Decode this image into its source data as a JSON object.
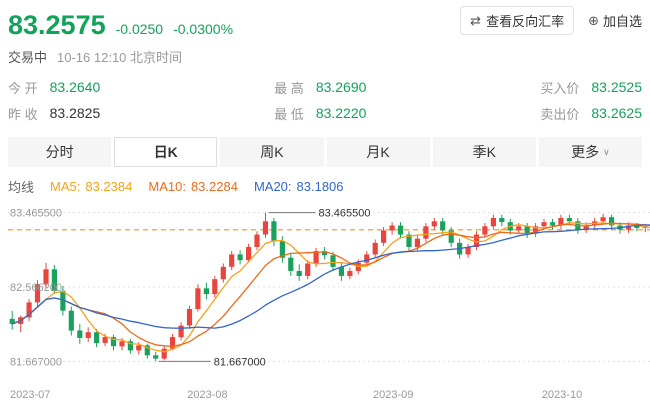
{
  "colors": {
    "green": "#12a35a",
    "dark_text": "#333333",
    "gray_label": "#999999",
    "candle_up": "#e8453f",
    "candle_down": "#19a25c",
    "dashed_line": "#ff8c1a",
    "grid_line": "#e0e0e0",
    "ma5": "#f7a21b",
    "ma10": "#ed6a1c",
    "ma20": "#3366cc"
  },
  "icons": {
    "swap": "⇄",
    "add_circle": "⊕",
    "chevron_down": "∨"
  },
  "header": {
    "price": "83.2575",
    "change": "-0.0250",
    "change_pct": "-0.0300%",
    "reverse_rate_label": "查看反向汇率",
    "add_watchlist_label": "加自选",
    "status": "交易中",
    "timestamp": "10-16 12:10 北京时间"
  },
  "quote": {
    "open_label": "今 开",
    "open": "83.2640",
    "prev_close_label": "昨 收",
    "prev_close": "83.2825",
    "high_label": "最 高",
    "high": "83.2690",
    "low_label": "最 低",
    "low": "83.2220",
    "bid_label": "买入价",
    "bid": "83.2525",
    "ask_label": "卖出价",
    "ask": "83.2625"
  },
  "tabs": [
    {
      "label": "分时",
      "active": false
    },
    {
      "label": "日K",
      "active": true
    },
    {
      "label": "周K",
      "active": false
    },
    {
      "label": "月K",
      "active": false
    },
    {
      "label": "季K",
      "active": false
    },
    {
      "label": "更多",
      "active": false,
      "has_chevron": true
    }
  ],
  "ma": {
    "title": "均线",
    "ma5_label": "MA5:",
    "ma5_value": "83.2384",
    "ma10_label": "MA10:",
    "ma10_value": "83.2284",
    "ma20_label": "MA20:",
    "ma20_value": "83.1806"
  },
  "chart_data": {
    "type": "candlestick",
    "period": "日K",
    "current_price": 83.2575,
    "y_axis": {
      "ticks": [
        {
          "label": "83.465500",
          "value": 83.4655
        },
        {
          "label": "82.566200",
          "value": 82.5662
        },
        {
          "label": "81.667000",
          "value": 81.667
        }
      ]
    },
    "x_axis": {
      "ticks": [
        {
          "label": "2023-07",
          "index": 0
        },
        {
          "label": "2023-08",
          "index": 21
        },
        {
          "label": "2023-09",
          "index": 43
        },
        {
          "label": "2023-10",
          "index": 63
        }
      ]
    },
    "high_annotation": {
      "label": "83.465500",
      "value": 83.4655
    },
    "low_annotation": {
      "label": "81.667000",
      "value": 81.667
    },
    "ma_periods": [
      5,
      10,
      20
    ],
    "candles": [
      [
        82.18,
        82.28,
        82.05,
        82.12
      ],
      [
        82.12,
        82.22,
        82.02,
        82.2
      ],
      [
        82.2,
        82.42,
        82.15,
        82.38
      ],
      [
        82.38,
        82.65,
        82.33,
        82.6
      ],
      [
        82.6,
        82.86,
        82.55,
        82.78
      ],
      [
        82.78,
        82.83,
        82.48,
        82.52
      ],
      [
        82.52,
        82.58,
        82.22,
        82.28
      ],
      [
        82.28,
        82.33,
        81.98,
        82.04
      ],
      [
        82.04,
        82.12,
        81.88,
        81.95
      ],
      [
        81.95,
        82.08,
        81.9,
        82.02
      ],
      [
        82.02,
        82.06,
        81.84,
        81.89
      ],
      [
        81.89,
        82.0,
        81.85,
        81.96
      ],
      [
        81.96,
        81.99,
        81.8,
        81.85
      ],
      [
        81.85,
        81.95,
        81.8,
        81.91
      ],
      [
        81.91,
        81.94,
        81.76,
        81.8
      ],
      [
        81.8,
        81.9,
        81.75,
        81.86
      ],
      [
        81.86,
        81.88,
        81.7,
        81.74
      ],
      [
        81.74,
        81.78,
        81.667,
        81.7
      ],
      [
        81.7,
        81.85,
        81.68,
        81.82
      ],
      [
        81.82,
        82.0,
        81.8,
        81.96
      ],
      [
        81.96,
        82.14,
        81.92,
        82.1
      ],
      [
        82.1,
        82.34,
        82.06,
        82.3
      ],
      [
        82.3,
        82.6,
        82.27,
        82.55
      ],
      [
        82.55,
        82.62,
        82.42,
        82.48
      ],
      [
        82.48,
        82.7,
        82.44,
        82.66
      ],
      [
        82.66,
        82.85,
        82.62,
        82.81
      ],
      [
        82.81,
        83.0,
        82.77,
        82.96
      ],
      [
        82.96,
        83.01,
        82.84,
        82.89
      ],
      [
        82.89,
        83.09,
        82.86,
        83.05
      ],
      [
        83.05,
        83.24,
        83.01,
        83.2
      ],
      [
        83.2,
        83.4655,
        83.16,
        83.36
      ],
      [
        83.36,
        83.4,
        83.06,
        83.12
      ],
      [
        83.12,
        83.18,
        82.86,
        82.92
      ],
      [
        82.92,
        82.98,
        82.7,
        82.76
      ],
      [
        82.76,
        82.84,
        82.64,
        82.7
      ],
      [
        82.7,
        82.89,
        82.66,
        82.85
      ],
      [
        82.85,
        83.04,
        82.81,
        83.0
      ],
      [
        83.0,
        83.05,
        82.9,
        82.95
      ],
      [
        82.95,
        82.99,
        82.76,
        82.81
      ],
      [
        82.81,
        82.86,
        82.64,
        82.7
      ],
      [
        82.7,
        82.8,
        82.66,
        82.76
      ],
      [
        82.76,
        82.9,
        82.72,
        82.86
      ],
      [
        82.86,
        83.0,
        82.82,
        82.96
      ],
      [
        82.96,
        83.14,
        82.92,
        83.1
      ],
      [
        83.1,
        83.29,
        83.06,
        83.25
      ],
      [
        83.25,
        83.35,
        83.2,
        83.31
      ],
      [
        83.31,
        83.35,
        83.15,
        83.2
      ],
      [
        83.2,
        83.24,
        83.0,
        83.05
      ],
      [
        83.05,
        83.19,
        83.01,
        83.15
      ],
      [
        83.15,
        83.34,
        83.11,
        83.3
      ],
      [
        83.3,
        83.4,
        83.26,
        83.36
      ],
      [
        83.36,
        83.4,
        83.2,
        83.25
      ],
      [
        83.25,
        83.29,
        83.05,
        83.1
      ],
      [
        83.1,
        83.15,
        82.91,
        82.96
      ],
      [
        82.96,
        83.09,
        82.92,
        83.05
      ],
      [
        83.05,
        83.24,
        83.01,
        83.2
      ],
      [
        83.2,
        83.34,
        83.16,
        83.3
      ],
      [
        83.3,
        83.44,
        83.26,
        83.4
      ],
      [
        83.4,
        83.44,
        83.3,
        83.35
      ],
      [
        83.35,
        83.39,
        83.2,
        83.25
      ],
      [
        83.25,
        83.34,
        83.21,
        83.3
      ],
      [
        83.3,
        83.34,
        83.16,
        83.21
      ],
      [
        83.21,
        83.34,
        83.17,
        83.3
      ],
      [
        83.3,
        83.39,
        83.26,
        83.35
      ],
      [
        83.35,
        83.39,
        83.26,
        83.31
      ],
      [
        83.31,
        83.44,
        83.27,
        83.4
      ],
      [
        83.4,
        83.44,
        83.31,
        83.36
      ],
      [
        83.36,
        83.4,
        83.21,
        83.26
      ],
      [
        83.26,
        83.35,
        83.22,
        83.31
      ],
      [
        83.31,
        83.4,
        83.27,
        83.36
      ],
      [
        83.36,
        83.45,
        83.32,
        83.41
      ],
      [
        83.41,
        83.44,
        83.26,
        83.31
      ],
      [
        83.31,
        83.35,
        83.21,
        83.26
      ],
      [
        83.26,
        83.35,
        83.22,
        83.31
      ],
      [
        83.31,
        83.34,
        83.24,
        83.28
      ],
      [
        83.28,
        83.33,
        83.23,
        83.3
      ],
      [
        83.3,
        83.31,
        83.2,
        83.2575
      ]
    ]
  }
}
